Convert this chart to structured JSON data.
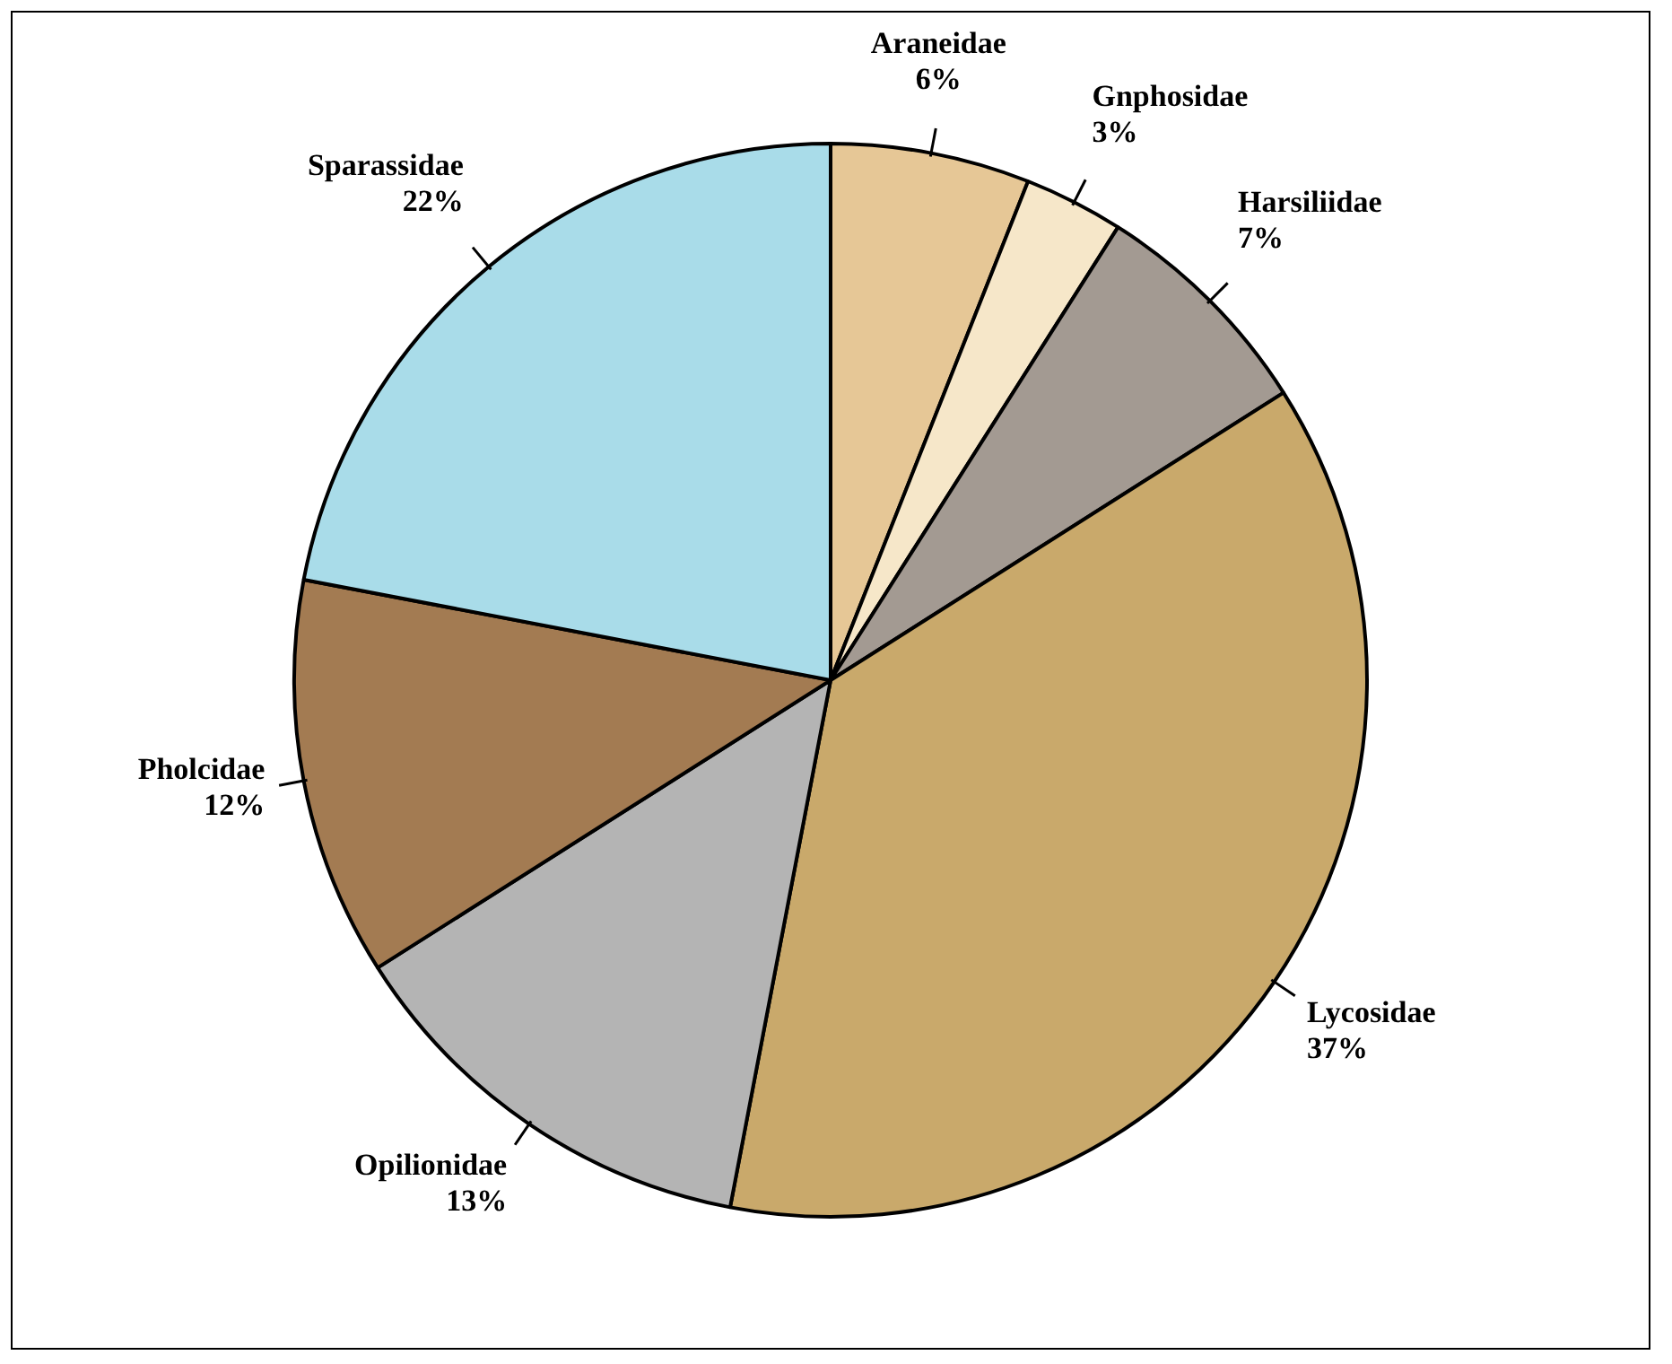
{
  "chart_data": {
    "type": "pie",
    "categories": [
      "Araneidae",
      "Gnphosidae",
      "Harsiliidae",
      "Lycosidae",
      "Opilionidae",
      "Pholcidae",
      "Sparassidae"
    ],
    "values": [
      6,
      3,
      7,
      37,
      13,
      12,
      22
    ],
    "colors": [
      "#e6c796",
      "#f6e7c9",
      "#a39a92",
      "#c9a96b",
      "#b4b4b4",
      "#a37b52",
      "#a9dce9"
    ],
    "value_labels": [
      "6%",
      "3%",
      "7%",
      "37%",
      "13%",
      "12%",
      "22%"
    ],
    "legend": false
  }
}
